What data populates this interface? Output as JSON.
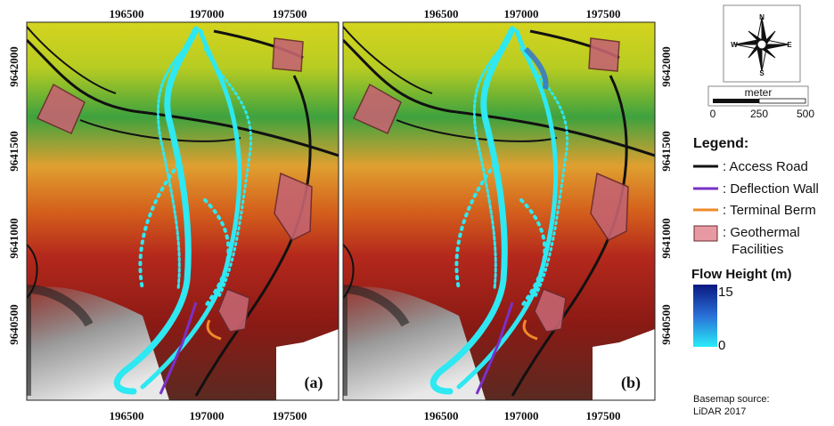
{
  "axes": {
    "x_ticks": [
      "196500",
      "197000",
      "197500"
    ],
    "y_ticks": [
      "9642000",
      "9641500",
      "9641000",
      "9640500"
    ]
  },
  "panels": [
    {
      "label": "(a)"
    },
    {
      "label": "(b)"
    }
  ],
  "compass": {
    "north": "N",
    "south": "S",
    "east": "E",
    "west": "W"
  },
  "scale_bar": {
    "unit": "meter",
    "ticks": [
      "0",
      "250",
      "500"
    ]
  },
  "legend": {
    "title": "Legend:",
    "items": [
      ": Access Road",
      ": Deflection Wall",
      ": Terminal Berm",
      ": Geothermal",
      "Facilities"
    ]
  },
  "flow_height": {
    "title": "Flow Height (m)",
    "max": "15",
    "min": "0"
  },
  "source": [
    "Basemap source:",
    "LiDAR 2017"
  ]
}
